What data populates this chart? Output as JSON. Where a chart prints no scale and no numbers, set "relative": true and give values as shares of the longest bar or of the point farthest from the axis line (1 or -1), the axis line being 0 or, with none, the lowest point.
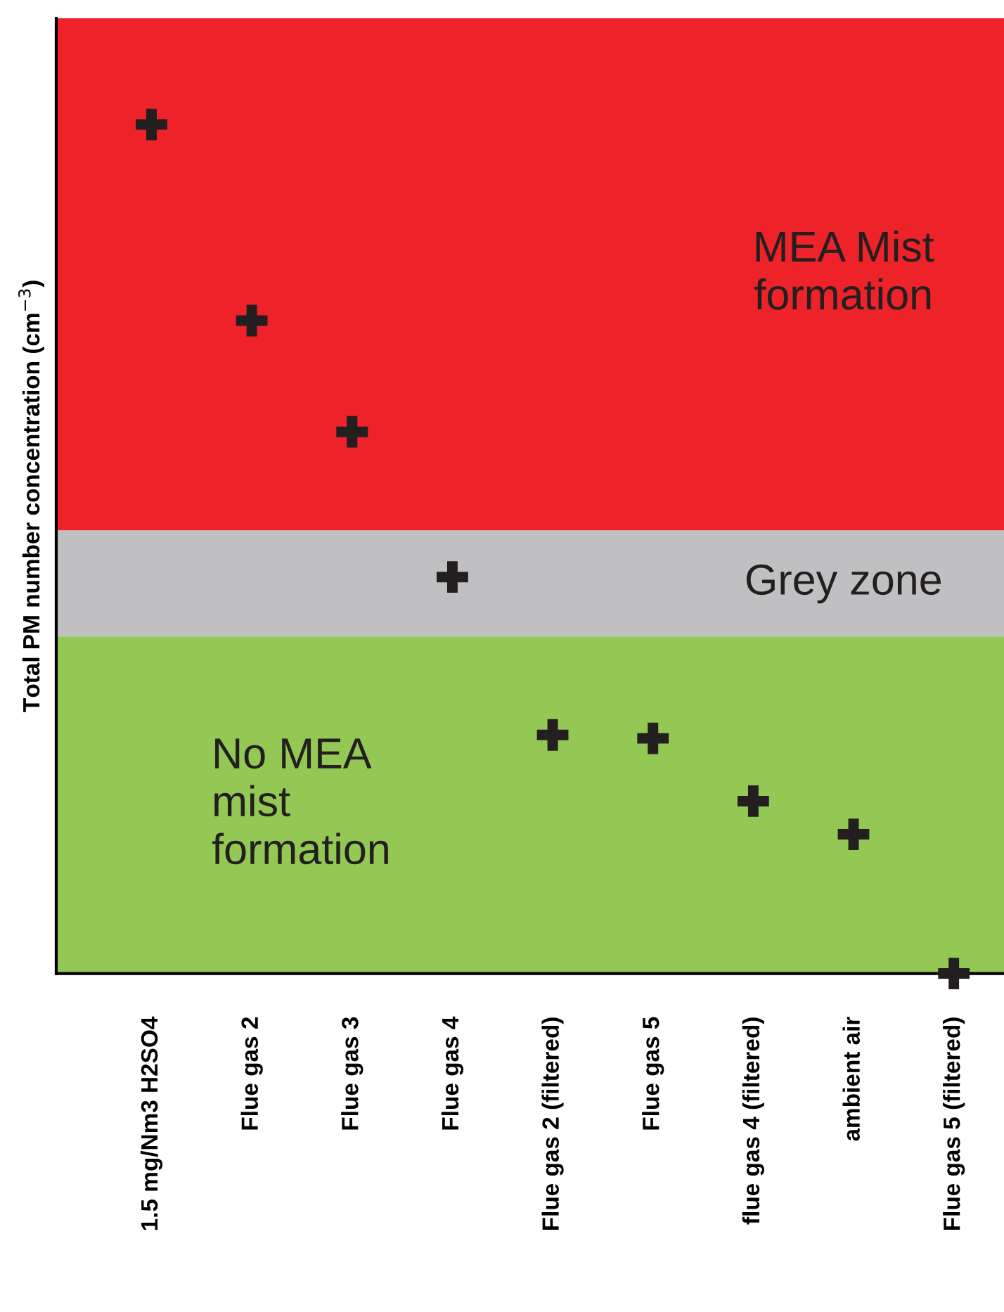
{
  "chart_data": {
    "type": "scatter",
    "relative": true,
    "ylabel": "Total PM number concentration (cm$^{−3}$)",
    "categories": [
      "1.5 mg/Nm3 H2SO4",
      "Flue gas 2",
      "Flue gas 3",
      "Flue gas 4",
      "Flue gas 2 (filtered)",
      "Flue gas 5",
      "flue gas 4 (filtered)",
      "ambient air",
      "Flue gas 5 (filtered)"
    ],
    "series": [
      {
        "color": "#231f20",
        "values": [
          1,
          0.769,
          0.638,
          0.467,
          0.281,
          0.277,
          0.203,
          0.164,
          0
        ]
      }
    ],
    "marker": "cross",
    "tick_labels": "x",
    "grid": false,
    "legend": false,
    "bands": [
      {
        "axis": "y",
        "from": 0,
        "to": 0.397,
        "label": "No MEA\nmist\nformation",
        "color": "#92c853"
      },
      {
        "axis": "y",
        "from": 0.397,
        "to": 0.522,
        "label": "Grey zone",
        "color": "#c0c0c2"
      },
      {
        "axis": "y",
        "from": 0.522,
        "to": 1.125,
        "label": "MEA Mist\nformation",
        "color": "#ee2229"
      }
    ]
  }
}
